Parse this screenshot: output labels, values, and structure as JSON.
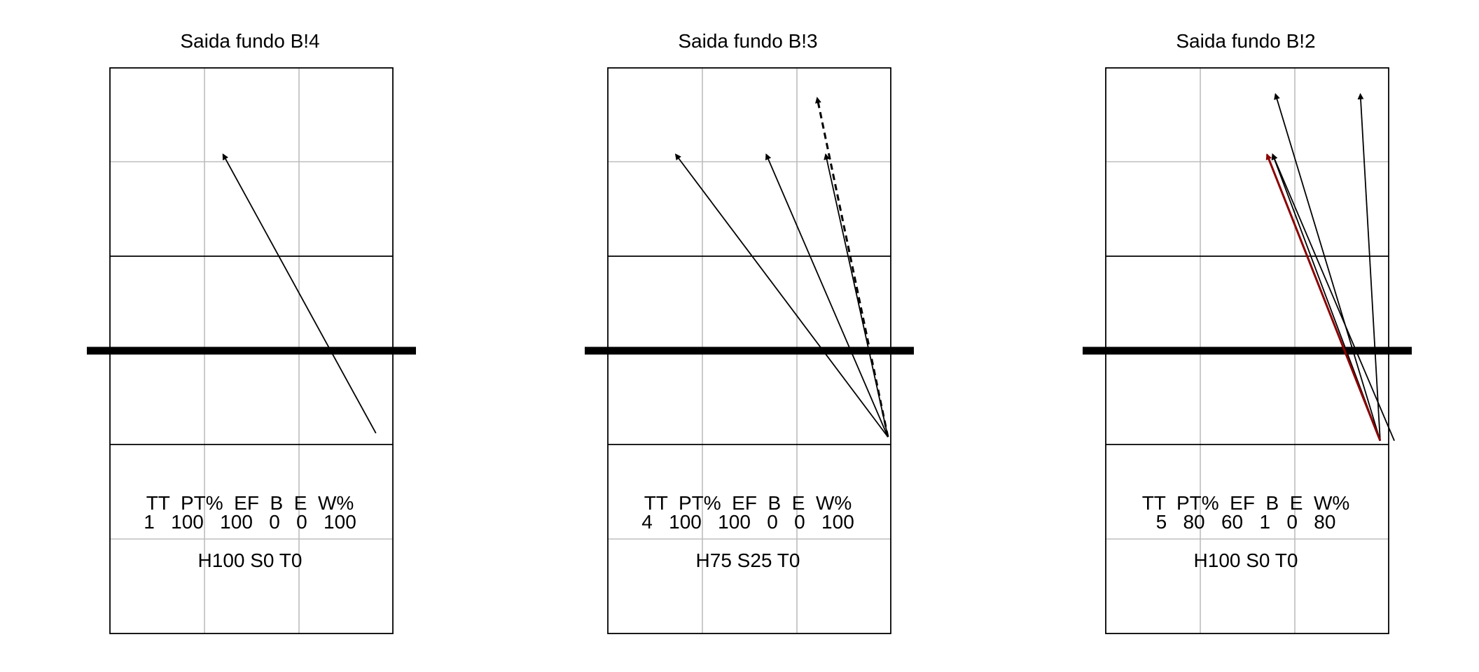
{
  "panels": [
    {
      "title": "Saida fundo B!4",
      "stats_header": "TT  PT%  EF  B  E  W%",
      "stats_values": "1   100   100   0   0   100",
      "footer": "H100 S0 T0",
      "arrows": [
        {
          "from": [
            0.94,
            0.97
          ],
          "to": [
            0.4,
            0.23
          ],
          "style": "solid",
          "color": "#000000"
        }
      ]
    },
    {
      "title": "Saida fundo B!3",
      "stats_header": "TT  PT%  EF  B  E  W%",
      "stats_values": "4   100   100   0   0   100",
      "footer": "H75 S25 T0",
      "arrows": [
        {
          "from": [
            0.99,
            0.98
          ],
          "to": [
            0.24,
            0.23
          ],
          "style": "solid",
          "color": "#000000"
        },
        {
          "from": [
            0.99,
            0.98
          ],
          "to": [
            0.56,
            0.23
          ],
          "style": "solid",
          "color": "#000000"
        },
        {
          "from": [
            0.99,
            0.98
          ],
          "to": [
            0.77,
            0.23
          ],
          "style": "solid",
          "color": "#000000"
        },
        {
          "from": [
            0.99,
            0.98
          ],
          "to": [
            0.74,
            0.08
          ],
          "style": "dashed",
          "color": "#000000"
        }
      ]
    },
    {
      "title": "Saida fundo B!2",
      "stats_header": "TT  PT%  EF  B  E  W%",
      "stats_values": "5   80   60   1   0   80",
      "footer": "H100 S0 T0",
      "arrows": [
        {
          "from": [
            0.97,
            0.99
          ],
          "to": [
            0.6,
            0.07
          ],
          "style": "solid",
          "color": "#000000"
        },
        {
          "from": [
            0.97,
            0.99
          ],
          "to": [
            0.9,
            0.07
          ],
          "style": "solid",
          "color": "#000000"
        },
        {
          "from": [
            0.97,
            0.99
          ],
          "to": [
            0.59,
            0.23
          ],
          "style": "solid",
          "color": "#000000"
        },
        {
          "from": [
            1.02,
            0.99
          ],
          "to": [
            0.59,
            0.23
          ],
          "style": "solid",
          "color": "#000000"
        },
        {
          "from": [
            0.97,
            0.99
          ],
          "to": [
            0.57,
            0.23
          ],
          "style": "solid",
          "color": "#8b0000"
        }
      ]
    }
  ]
}
